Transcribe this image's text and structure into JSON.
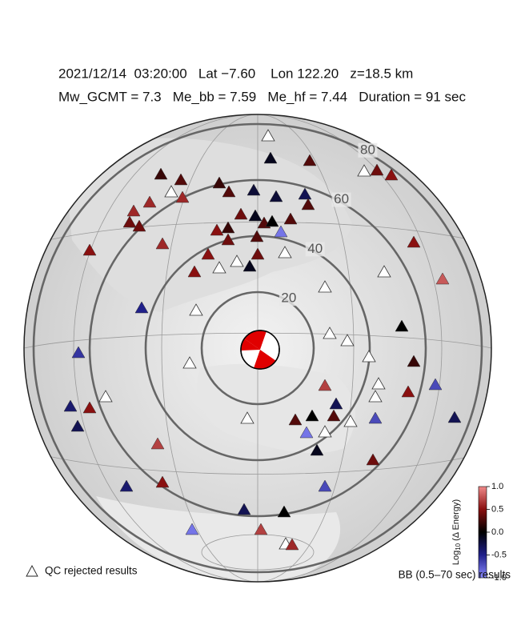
{
  "header": {
    "line1": "2021/12/14  03:20:00   Lat −7.60    Lon 122.20   z=18.5 km",
    "line2": "Mw_GCMT = 7.3   Me_bb = 7.59   Me_hf = 7.44   Duration = 91 sec"
  },
  "distance_rings": [
    20,
    40,
    60,
    80
  ],
  "colorbar": {
    "label_main": "Log",
    "label_sub": "10",
    "label_rest": "(Δ Energy)",
    "clim": [
      -1,
      1
    ],
    "colors": [
      "#8a8aff",
      "#20208a",
      "#000000",
      "#8a1010",
      "#f08a8a"
    ],
    "ticks": [
      {
        "value": 1,
        "label": "1.0"
      },
      0.5,
      {
        "value": 0,
        "label": "0.0"
      },
      -0.5,
      {
        "value": -1,
        "label": "-1.0"
      }
    ]
  },
  "legend": {
    "rejected": "QC rejected results",
    "band": "BB (0.5–70 sec) results"
  },
  "stations": {
    "values": [
      null,
      -0.1,
      0.3,
      null,
      0.4,
      0.5,
      0.2,
      0.3,
      null,
      0.6,
      0.2,
      0.3,
      -0.2,
      -0.2,
      -0.3,
      0.3,
      0.6,
      0.6,
      0.4,
      0.4,
      0.4,
      -0.1,
      0.3,
      0.2,
      0,
      0.3,
      0.5,
      0.4,
      0.3,
      -0.9,
      0.5,
      0.6,
      0.5,
      null,
      0.4,
      -0.1,
      null,
      0.5,
      0.5,
      null,
      null,
      0.8,
      null,
      -0.5,
      null,
      0,
      null,
      null,
      -0.6,
      null,
      null,
      0.2,
      0.7,
      0.5,
      null,
      -0.7,
      null,
      -0.4,
      0.5,
      null,
      -0.3,
      null,
      0.3,
      0,
      0.3,
      null,
      -0.3,
      -0.3,
      -0.7,
      -0.9,
      null,
      0.7,
      -0.1,
      0.4,
      -0.4,
      0.5,
      -0.7,
      -0.3,
      0,
      0.7,
      -0.9,
      null,
      0.6
    ]
  }
}
